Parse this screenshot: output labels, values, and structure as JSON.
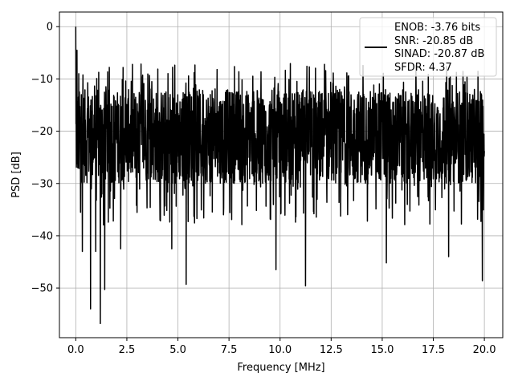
{
  "chart_data": {
    "type": "line",
    "title": "",
    "xlabel": "Frequency [MHz]",
    "ylabel": "PSD [dB]",
    "xlim": [
      -0.8,
      20.9
    ],
    "ylim": [
      -59.5,
      2.8
    ],
    "xticks": [
      0.0,
      2.5,
      5.0,
      7.5,
      10.0,
      12.5,
      15.0,
      17.5,
      20.0
    ],
    "xtick_labels": [
      "0.0",
      "2.5",
      "5.0",
      "7.5",
      "10.0",
      "12.5",
      "15.0",
      "17.5",
      "20.0"
    ],
    "yticks": [
      0,
      -10,
      -20,
      -30,
      -40,
      -50
    ],
    "ytick_labels": [
      "0",
      "−10",
      "−20",
      "−30",
      "−40",
      "−50"
    ],
    "grid": true,
    "line_color": "#000000",
    "legend": {
      "location": "upper right",
      "lines": [
        "ENOB: -3.76 bits",
        "SNR: -20.85 dB",
        "SINAD: -20.87 dB",
        "SFDR: 4.37"
      ]
    },
    "series": [
      {
        "n_points": 2048,
        "x_range": [
          0.0,
          20.0
        ],
        "typical_range_db": [
          -30,
          -12
        ],
        "peaks": [
          {
            "x": 0.0,
            "y": 0.0
          },
          {
            "x": 0.04,
            "y": -23.5
          },
          {
            "x": 0.06,
            "y": -4.5
          },
          {
            "x": 0.1,
            "y": -27.0
          },
          {
            "x": 0.15,
            "y": -9.0
          }
        ],
        "dips": [
          {
            "x": 0.32,
            "y": -43.0
          },
          {
            "x": 0.72,
            "y": -54.0
          },
          {
            "x": 0.98,
            "y": -43.0
          },
          {
            "x": 1.2,
            "y": -56.8
          },
          {
            "x": 1.42,
            "y": -50.3
          },
          {
            "x": 2.2,
            "y": -42.5
          },
          {
            "x": 4.7,
            "y": -42.5
          },
          {
            "x": 5.4,
            "y": -49.3
          },
          {
            "x": 9.8,
            "y": -46.5
          },
          {
            "x": 11.25,
            "y": -49.6
          },
          {
            "x": 15.2,
            "y": -45.2
          },
          {
            "x": 18.25,
            "y": -44.0
          },
          {
            "x": 19.9,
            "y": -48.6
          }
        ]
      }
    ]
  }
}
